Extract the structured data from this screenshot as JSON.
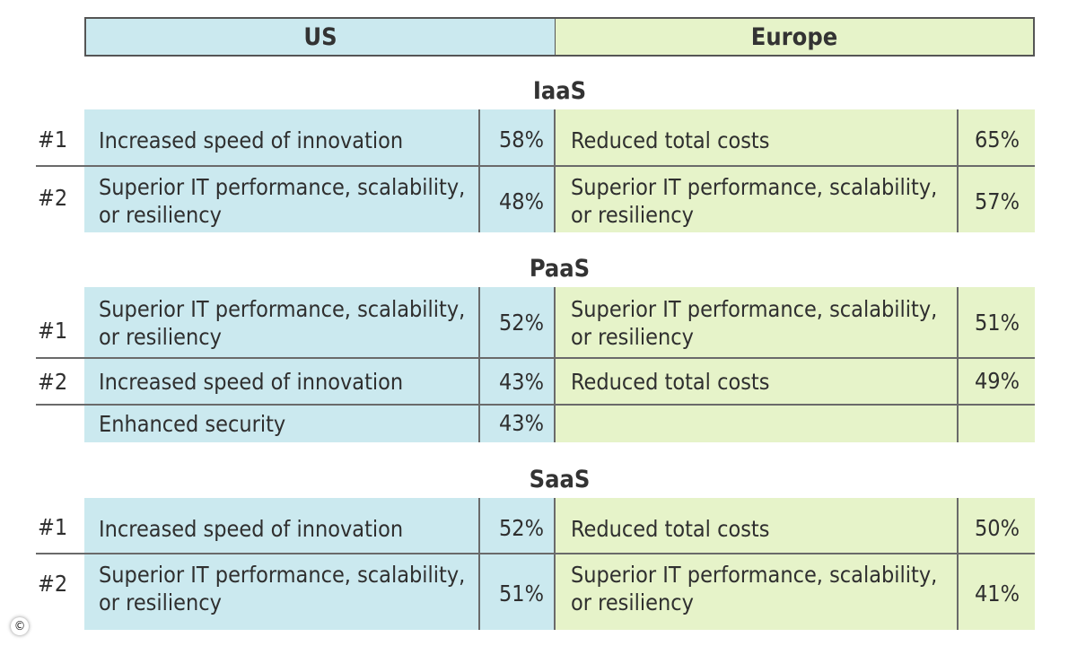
{
  "chart_data": {
    "type": "table",
    "columns": [
      "US",
      "Europe"
    ],
    "rank_labels": [
      "#1",
      "#2"
    ],
    "sections": [
      {
        "title": "IaaS",
        "rows": [
          {
            "rank": "#1",
            "us": {
              "label": "Increased speed of innovation",
              "value": "58%"
            },
            "europe": {
              "label": "Reduced total costs",
              "value": "65%"
            }
          },
          {
            "rank": "#2",
            "us": {
              "label": "Superior IT performance, scalability, or resiliency",
              "value": "48%"
            },
            "europe": {
              "label": "Superior IT performance, scalability, or resiliency",
              "value": "57%"
            }
          }
        ]
      },
      {
        "title": "PaaS",
        "rows": [
          {
            "rank": "#1",
            "us": {
              "label": "Superior IT performance, scalability, or resiliency",
              "value": "52%"
            },
            "europe": {
              "label": "Superior IT performance, scalability, or resiliency",
              "value": "51%"
            }
          },
          {
            "rank": "#2",
            "us": {
              "label": "Increased speed of innovation",
              "value": "43%"
            },
            "europe": {
              "label": "Reduced total costs",
              "value": "49%"
            }
          },
          {
            "rank": "",
            "us": {
              "label": "Enhanced security",
              "value": "43%"
            },
            "europe": {
              "label": "",
              "value": ""
            }
          }
        ]
      },
      {
        "title": "SaaS",
        "rows": [
          {
            "rank": "#1",
            "us": {
              "label": "Increased speed of innovation",
              "value": "52%"
            },
            "europe": {
              "label": "Reduced total costs",
              "value": "50%"
            }
          },
          {
            "rank": "#2",
            "us": {
              "label": "Superior IT performance, scalability, or resiliency",
              "value": "51%"
            },
            "europe": {
              "label": "Superior IT performance, scalability, or resiliency",
              "value": "41%"
            }
          }
        ]
      }
    ]
  },
  "header": {
    "us": "US",
    "europe": "Europe"
  },
  "copyright_symbol": "©"
}
